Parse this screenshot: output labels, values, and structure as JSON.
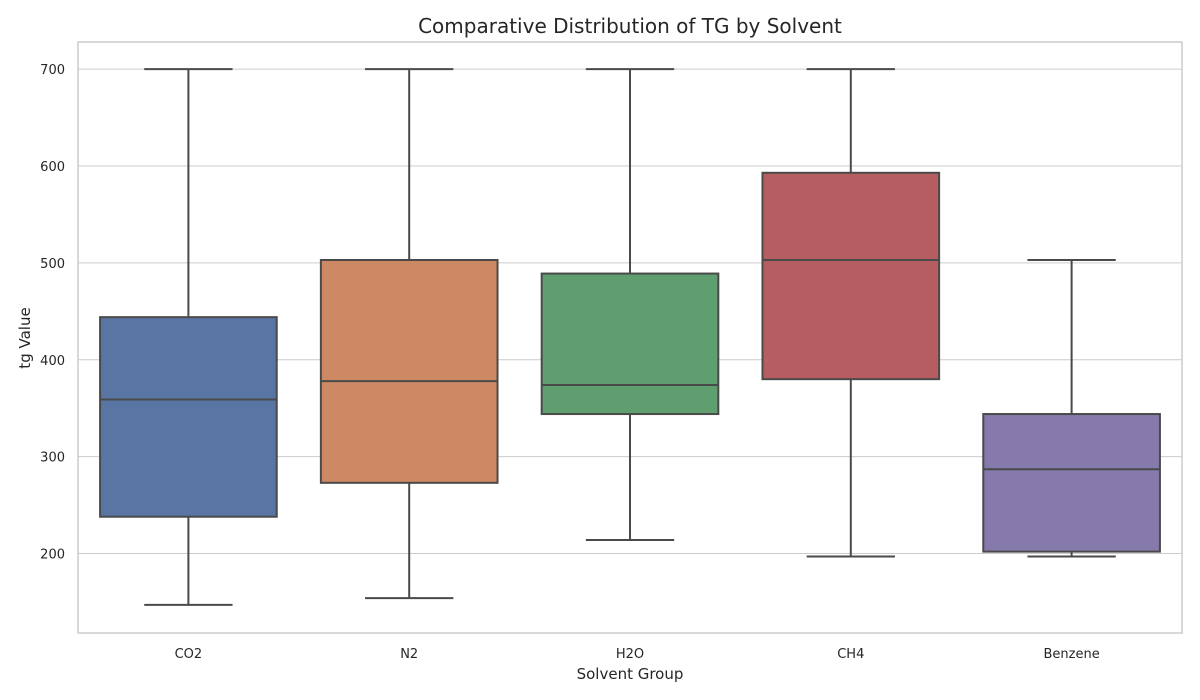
{
  "chart_data": {
    "type": "box",
    "title": "Comparative Distribution of TG by Solvent",
    "xlabel": "Solvent Group",
    "ylabel": "tg Value",
    "ylim": [
      118,
      728
    ],
    "yticks": [
      200,
      300,
      400,
      500,
      600,
      700
    ],
    "grid": true,
    "categories": [
      "CO2",
      "N2",
      "H2O",
      "CH4",
      "Benzene"
    ],
    "colors": [
      "#5875a4",
      "#cc8963",
      "#5f9e6e",
      "#b55d60",
      "#857aab"
    ],
    "boxes": [
      {
        "label": "CO2",
        "min": 147,
        "q1": 238,
        "median": 359,
        "q3": 444,
        "max": 700
      },
      {
        "label": "N2",
        "min": 154,
        "q1": 273,
        "median": 378,
        "q3": 503,
        "max": 700
      },
      {
        "label": "H2O",
        "min": 214,
        "q1": 344,
        "median": 374,
        "q3": 489,
        "max": 700
      },
      {
        "label": "CH4",
        "min": 197,
        "q1": 380,
        "median": 503,
        "q3": 593,
        "max": 700
      },
      {
        "label": "Benzene",
        "min": 197,
        "q1": 202,
        "median": 287,
        "q3": 344,
        "max": 503
      }
    ]
  }
}
